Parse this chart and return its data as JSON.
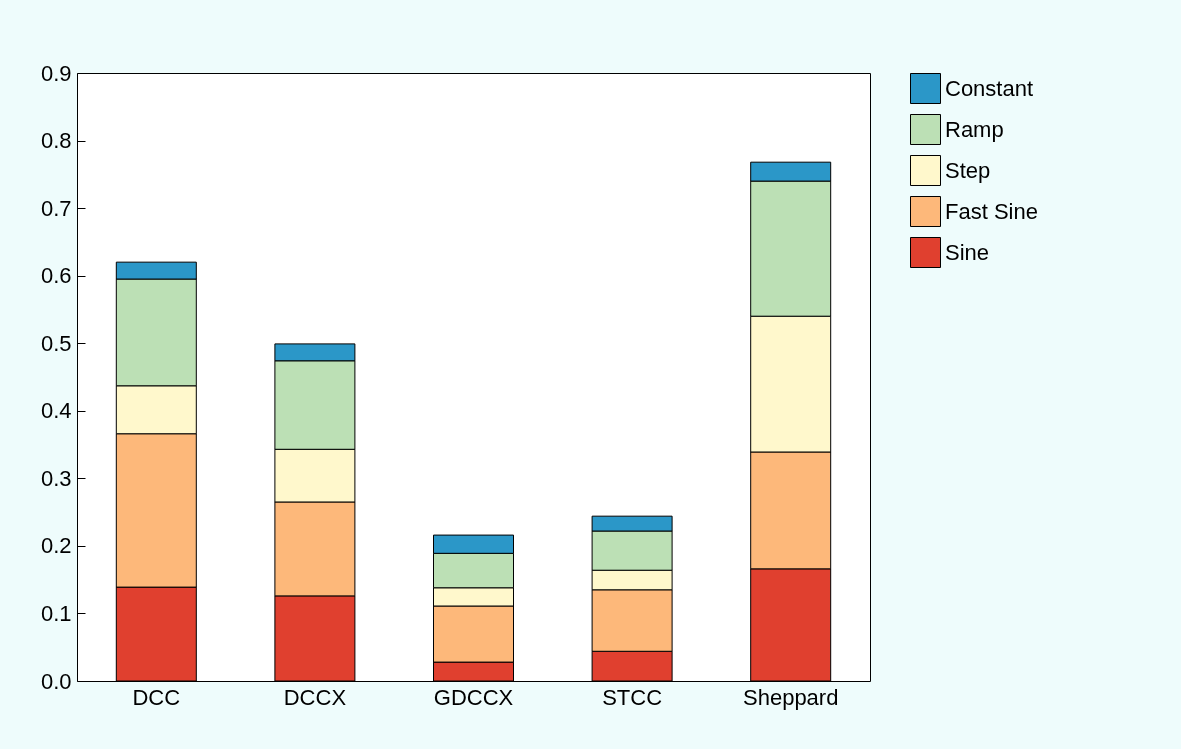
{
  "chart_data": {
    "type": "bar",
    "stacked": true,
    "categories": [
      "DCC",
      "DCCX",
      "GDCCX",
      "STCC",
      "Sheppard"
    ],
    "series": [
      {
        "name": "Sine",
        "color": "#e0402f",
        "values": [
          0.139,
          0.126,
          0.028,
          0.044,
          0.166
        ]
      },
      {
        "name": "Fast Sine",
        "color": "#fdb87a",
        "values": [
          0.227,
          0.139,
          0.083,
          0.091,
          0.173
        ]
      },
      {
        "name": "Step",
        "color": "#fff8cc",
        "values": [
          0.071,
          0.078,
          0.027,
          0.029,
          0.201
        ]
      },
      {
        "name": "Ramp",
        "color": "#bce0b5",
        "values": [
          0.158,
          0.131,
          0.051,
          0.058,
          0.2
        ]
      },
      {
        "name": "Constant",
        "color": "#2b97c8",
        "values": [
          0.025,
          0.025,
          0.027,
          0.022,
          0.028
        ]
      }
    ],
    "ylim": [
      0,
      0.9
    ],
    "yticks": [
      {
        "value": 0,
        "label": "0.0"
      },
      0.1,
      0.2,
      0.3,
      0.4,
      0.5,
      0.6,
      0.7,
      0.8,
      0.9
    ],
    "grid": false,
    "legend": "right"
  }
}
